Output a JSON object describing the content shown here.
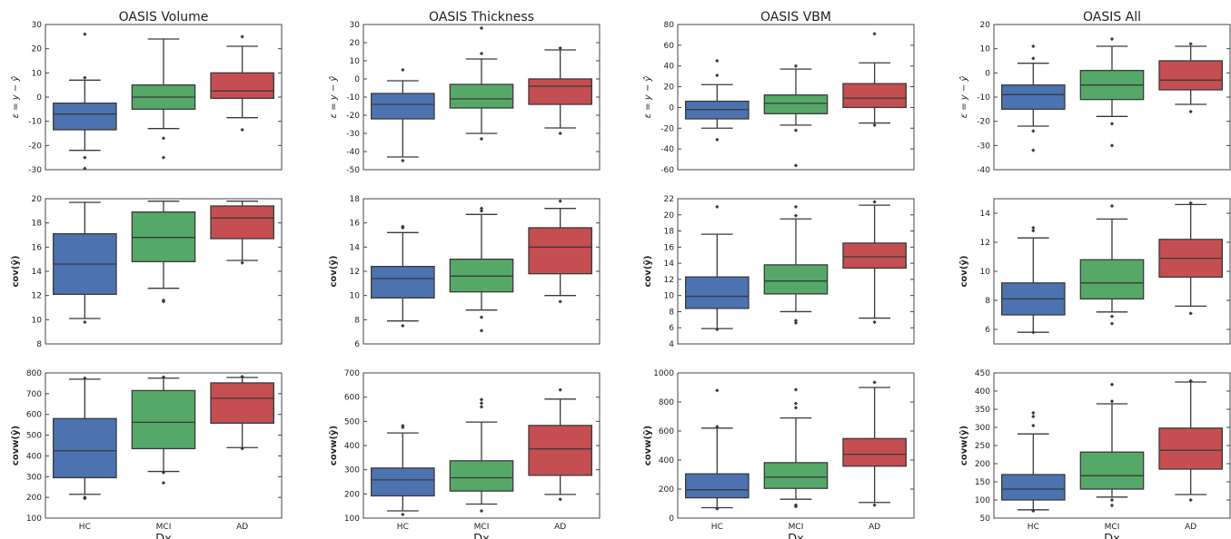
{
  "colors": {
    "HC": "#4c72b0",
    "MCI": "#55a868",
    "AD": "#c44e52",
    "line": "#3a3a3a",
    "frame": "#444444"
  },
  "chart_data": [
    {
      "type": "box",
      "title": "OASIS Volume",
      "xlabel": "",
      "ylabel": "ε = y − ŷ",
      "categories": [
        "HC",
        "MCI",
        "AD"
      ],
      "ylim": [
        -30,
        30
      ],
      "yticks": [
        -30,
        -20,
        -10,
        0,
        10,
        20,
        30
      ],
      "boxes": [
        {
          "category": "HC",
          "whisker_low": -22,
          "q1": -13.5,
          "median": -7,
          "q3": -2.5,
          "whisker_high": 7,
          "outliers": [
            26,
            8,
            -25,
            -29.5
          ]
        },
        {
          "category": "MCI",
          "whisker_low": -13,
          "q1": -5,
          "median": 0,
          "q3": 5,
          "whisker_high": 24,
          "outliers": [
            -17,
            -25
          ]
        },
        {
          "category": "AD",
          "whisker_low": -8.5,
          "q1": -0.5,
          "median": 2.5,
          "q3": 10,
          "whisker_high": 21,
          "outliers": [
            25,
            -13.5
          ]
        }
      ]
    },
    {
      "type": "box",
      "title": "OASIS Thickness",
      "xlabel": "",
      "ylabel": "ε = y − ŷ",
      "categories": [
        "HC",
        "MCI",
        "AD"
      ],
      "ylim": [
        -50,
        30
      ],
      "yticks": [
        -50,
        -40,
        -30,
        -20,
        -10,
        0,
        10,
        20,
        30
      ],
      "boxes": [
        {
          "category": "HC",
          "whisker_low": -43,
          "q1": -22,
          "median": -14,
          "q3": -8,
          "whisker_high": -1,
          "outliers": [
            5,
            -45
          ]
        },
        {
          "category": "MCI",
          "whisker_low": -30,
          "q1": -16,
          "median": -11,
          "q3": -3,
          "whisker_high": 11,
          "outliers": [
            14,
            28,
            -33
          ]
        },
        {
          "category": "AD",
          "whisker_low": -27,
          "q1": -14,
          "median": -4,
          "q3": 0,
          "whisker_high": 16,
          "outliers": [
            17,
            -30
          ]
        }
      ]
    },
    {
      "type": "box",
      "title": "OASIS VBM",
      "xlabel": "",
      "ylabel": "ε = y − ŷ",
      "categories": [
        "HC",
        "MCI",
        "AD"
      ],
      "ylim": [
        -60,
        80
      ],
      "yticks": [
        -60,
        -40,
        -20,
        0,
        20,
        40,
        60,
        80
      ],
      "boxes": [
        {
          "category": "HC",
          "whisker_low": -20,
          "q1": -11,
          "median": -2,
          "q3": 6,
          "whisker_high": 22,
          "outliers": [
            45,
            31,
            -31
          ]
        },
        {
          "category": "MCI",
          "whisker_low": -17,
          "q1": -6,
          "median": 4,
          "q3": 12,
          "whisker_high": 37,
          "outliers": [
            40,
            -22,
            -56
          ]
        },
        {
          "category": "AD",
          "whisker_low": -15,
          "q1": 0,
          "median": 9,
          "q3": 23,
          "whisker_high": 43,
          "outliers": [
            71,
            -17
          ]
        }
      ]
    },
    {
      "type": "box",
      "title": "OASIS All",
      "xlabel": "",
      "ylabel": "ε = y − ŷ",
      "categories": [
        "HC",
        "MCI",
        "AD"
      ],
      "ylim": [
        -40,
        20
      ],
      "yticks": [
        -40,
        -30,
        -20,
        -10,
        0,
        10,
        20
      ],
      "boxes": [
        {
          "category": "HC",
          "whisker_low": -22,
          "q1": -15,
          "median": -9,
          "q3": -5,
          "whisker_high": 4,
          "outliers": [
            11,
            6,
            -24,
            -32
          ]
        },
        {
          "category": "MCI",
          "whisker_low": -18,
          "q1": -11,
          "median": -5,
          "q3": 1,
          "whisker_high": 11,
          "outliers": [
            14,
            -21,
            -30
          ]
        },
        {
          "category": "AD",
          "whisker_low": -13,
          "q1": -7,
          "median": -3,
          "q3": 5,
          "whisker_high": 11,
          "outliers": [
            12,
            -16
          ]
        }
      ]
    },
    {
      "type": "box",
      "title": "",
      "xlabel": "",
      "ylabel": "cov(ŷ)",
      "categories": [
        "HC",
        "MCI",
        "AD"
      ],
      "ylim": [
        8,
        20
      ],
      "yticks": [
        8,
        10,
        12,
        14,
        16,
        18,
        20
      ],
      "boxes": [
        {
          "category": "HC",
          "whisker_low": 10.1,
          "q1": 12.1,
          "median": 14.6,
          "q3": 17.1,
          "whisker_high": 19.7,
          "outliers": [
            9.8
          ]
        },
        {
          "category": "MCI",
          "whisker_low": 12.6,
          "q1": 14.8,
          "median": 16.8,
          "q3": 18.9,
          "whisker_high": 19.8,
          "outliers": [
            11.5,
            11.6
          ]
        },
        {
          "category": "AD",
          "whisker_low": 14.9,
          "q1": 16.7,
          "median": 18.4,
          "q3": 19.4,
          "whisker_high": 19.8,
          "outliers": [
            14.7
          ]
        }
      ]
    },
    {
      "type": "box",
      "title": "",
      "xlabel": "",
      "ylabel": "cov(ŷ)",
      "categories": [
        "HC",
        "MCI",
        "AD"
      ],
      "ylim": [
        6,
        18
      ],
      "yticks": [
        6,
        8,
        10,
        12,
        14,
        16,
        18
      ],
      "boxes": [
        {
          "category": "HC",
          "whisker_low": 7.9,
          "q1": 9.8,
          "median": 11.4,
          "q3": 12.4,
          "whisker_high": 15.2,
          "outliers": [
            15.6,
            15.7,
            7.5
          ]
        },
        {
          "category": "MCI",
          "whisker_low": 8.8,
          "q1": 10.3,
          "median": 11.6,
          "q3": 13,
          "whisker_high": 16.7,
          "outliers": [
            17,
            17.2,
            8.2,
            7.1
          ]
        },
        {
          "category": "AD",
          "whisker_low": 10,
          "q1": 11.8,
          "median": 14,
          "q3": 15.6,
          "whisker_high": 17.2,
          "outliers": [
            17.8,
            9.5
          ]
        }
      ]
    },
    {
      "type": "box",
      "title": "",
      "xlabel": "",
      "ylabel": "cov(ŷ)",
      "categories": [
        "HC",
        "MCI",
        "AD"
      ],
      "ylim": [
        4,
        22
      ],
      "yticks": [
        4,
        6,
        8,
        10,
        12,
        14,
        16,
        18,
        20,
        22
      ],
      "boxes": [
        {
          "category": "HC",
          "whisker_low": 5.9,
          "q1": 8.4,
          "median": 9.9,
          "q3": 12.3,
          "whisker_high": 17.6,
          "outliers": [
            21,
            5.8
          ]
        },
        {
          "category": "MCI",
          "whisker_low": 8,
          "q1": 10.2,
          "median": 11.8,
          "q3": 13.8,
          "whisker_high": 19.5,
          "outliers": [
            21,
            19.9,
            6.9,
            6.6
          ]
        },
        {
          "category": "AD",
          "whisker_low": 7.2,
          "q1": 13.4,
          "median": 14.8,
          "q3": 16.5,
          "whisker_high": 21.2,
          "outliers": [
            21.6,
            6.7
          ]
        }
      ]
    },
    {
      "type": "box",
      "title": "",
      "xlabel": "",
      "ylabel": "cov(ŷ)",
      "categories": [
        "HC",
        "MCI",
        "AD"
      ],
      "ylim": [
        5,
        15
      ],
      "yticks": [
        6,
        8,
        10,
        12,
        14
      ],
      "boxes": [
        {
          "category": "HC",
          "whisker_low": 5.8,
          "q1": 7,
          "median": 8.1,
          "q3": 9.2,
          "whisker_high": 12.3,
          "outliers": [
            13,
            12.8,
            5.8
          ]
        },
        {
          "category": "MCI",
          "whisker_low": 7.2,
          "q1": 8.1,
          "median": 9.2,
          "q3": 10.8,
          "whisker_high": 13.6,
          "outliers": [
            14.5,
            6.9,
            6.4
          ]
        },
        {
          "category": "AD",
          "whisker_low": 7.6,
          "q1": 9.6,
          "median": 10.9,
          "q3": 12.2,
          "whisker_high": 14.6,
          "outliers": [
            14.7,
            7.1
          ]
        }
      ]
    },
    {
      "type": "box",
      "title": "",
      "xlabel": "Dx",
      "ylabel": "covw(ŷ)",
      "categories": [
        "HC",
        "MCI",
        "AD"
      ],
      "ylim": [
        100,
        800
      ],
      "yticks": [
        100,
        200,
        300,
        400,
        500,
        600,
        700,
        800
      ],
      "boxes": [
        {
          "category": "HC",
          "whisker_low": 215,
          "q1": 295,
          "median": 425,
          "q3": 580,
          "whisker_high": 770,
          "outliers": [
            775,
            200,
            195
          ]
        },
        {
          "category": "MCI",
          "whisker_low": 325,
          "q1": 435,
          "median": 562,
          "q3": 715,
          "whisker_high": 775,
          "outliers": [
            780,
            320,
            270
          ]
        },
        {
          "category": "AD",
          "whisker_low": 440,
          "q1": 558,
          "median": 678,
          "q3": 752,
          "whisker_high": 778,
          "outliers": [
            782,
            435
          ]
        }
      ]
    },
    {
      "type": "box",
      "title": "",
      "xlabel": "Dx",
      "ylabel": "covw(ŷ)",
      "categories": [
        "HC",
        "MCI",
        "AD"
      ],
      "ylim": [
        100,
        700
      ],
      "yticks": [
        100,
        200,
        300,
        400,
        500,
        600,
        700
      ],
      "boxes": [
        {
          "category": "HC",
          "whisker_low": 130,
          "q1": 192,
          "median": 258,
          "q3": 307,
          "whisker_high": 452,
          "outliers": [
            482,
            475,
            115
          ]
        },
        {
          "category": "MCI",
          "whisker_low": 158,
          "q1": 212,
          "median": 267,
          "q3": 337,
          "whisker_high": 497,
          "outliers": [
            590,
            575,
            560,
            130
          ]
        },
        {
          "category": "AD",
          "whisker_low": 198,
          "q1": 277,
          "median": 386,
          "q3": 483,
          "whisker_high": 592,
          "outliers": [
            630,
            178
          ]
        }
      ]
    },
    {
      "type": "box",
      "title": "",
      "xlabel": "Dx",
      "ylabel": "covw(ŷ)",
      "categories": [
        "HC",
        "MCI",
        "AD"
      ],
      "ylim": [
        0,
        1000
      ],
      "yticks": [
        0,
        200,
        400,
        600,
        800,
        1000
      ],
      "boxes": [
        {
          "category": "HC",
          "whisker_low": 72,
          "q1": 140,
          "median": 195,
          "q3": 305,
          "whisker_high": 620,
          "outliers": [
            880,
            630,
            65
          ]
        },
        {
          "category": "MCI",
          "whisker_low": 130,
          "q1": 205,
          "median": 282,
          "q3": 382,
          "whisker_high": 690,
          "outliers": [
            885,
            790,
            760,
            90,
            80
          ]
        },
        {
          "category": "AD",
          "whisker_low": 108,
          "q1": 358,
          "median": 440,
          "q3": 548,
          "whisker_high": 900,
          "outliers": [
            935,
            90
          ]
        }
      ]
    },
    {
      "type": "box",
      "title": "",
      "xlabel": "Dx",
      "ylabel": "covw(ŷ)",
      "categories": [
        "HC",
        "MCI",
        "AD"
      ],
      "ylim": [
        50,
        450
      ],
      "yticks": [
        50,
        100,
        150,
        200,
        250,
        300,
        350,
        400,
        450
      ],
      "boxes": [
        {
          "category": "HC",
          "whisker_low": 73,
          "q1": 100,
          "median": 130,
          "q3": 170,
          "whisker_high": 282,
          "outliers": [
            340,
            330,
            305,
            70
          ]
        },
        {
          "category": "MCI",
          "whisker_low": 108,
          "q1": 130,
          "median": 167,
          "q3": 232,
          "whisker_high": 365,
          "outliers": [
            418,
            372,
            100,
            85
          ]
        },
        {
          "category": "AD",
          "whisker_low": 115,
          "q1": 185,
          "median": 237,
          "q3": 298,
          "whisker_high": 425,
          "outliers": [
            428,
            100
          ]
        }
      ]
    }
  ]
}
